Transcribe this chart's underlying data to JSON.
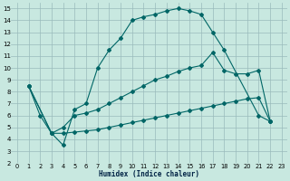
{
  "xlabel": "Humidex (Indice chaleur)",
  "bg_color": "#c8e8e0",
  "grid_color": "#99bbbb",
  "line_color": "#006666",
  "xlim": [
    -0.5,
    23.5
  ],
  "ylim": [
    2,
    15.5
  ],
  "xticks": [
    0,
    1,
    2,
    3,
    4,
    5,
    6,
    7,
    8,
    9,
    10,
    11,
    12,
    13,
    14,
    15,
    16,
    17,
    18,
    19,
    20,
    21,
    22,
    23
  ],
  "yticks": [
    2,
    3,
    4,
    5,
    6,
    7,
    8,
    9,
    10,
    11,
    12,
    13,
    14,
    15
  ],
  "line1_x": [
    1,
    2,
    3,
    4,
    5,
    6,
    7,
    8,
    9,
    10,
    11,
    12,
    13,
    14,
    15,
    16,
    17,
    18,
    21,
    22
  ],
  "line1_y": [
    8.5,
    6.0,
    4.5,
    3.5,
    6.5,
    7.0,
    10.0,
    11.5,
    12.5,
    14.0,
    14.3,
    14.5,
    14.8,
    15.0,
    14.8,
    14.5,
    13.0,
    11.5,
    6.0,
    5.5
  ],
  "line2_x": [
    1,
    3,
    4,
    5,
    6,
    7,
    8,
    9,
    10,
    11,
    12,
    13,
    14,
    15,
    16,
    17,
    18,
    19,
    20,
    21,
    22
  ],
  "line2_y": [
    8.5,
    4.5,
    5.0,
    6.0,
    6.2,
    6.5,
    7.0,
    7.5,
    8.0,
    8.5,
    9.0,
    9.3,
    9.7,
    10.0,
    10.2,
    11.3,
    9.8,
    9.5,
    9.5,
    9.8,
    5.5
  ],
  "line3_x": [
    1,
    3,
    4,
    5,
    6,
    7,
    8,
    9,
    10,
    11,
    12,
    13,
    14,
    15,
    16,
    17,
    18,
    19,
    20,
    21,
    22
  ],
  "line3_y": [
    8.5,
    4.5,
    4.5,
    4.6,
    4.7,
    4.8,
    5.0,
    5.2,
    5.4,
    5.6,
    5.8,
    6.0,
    6.2,
    6.4,
    6.6,
    6.8,
    7.0,
    7.2,
    7.4,
    7.5,
    5.5
  ]
}
